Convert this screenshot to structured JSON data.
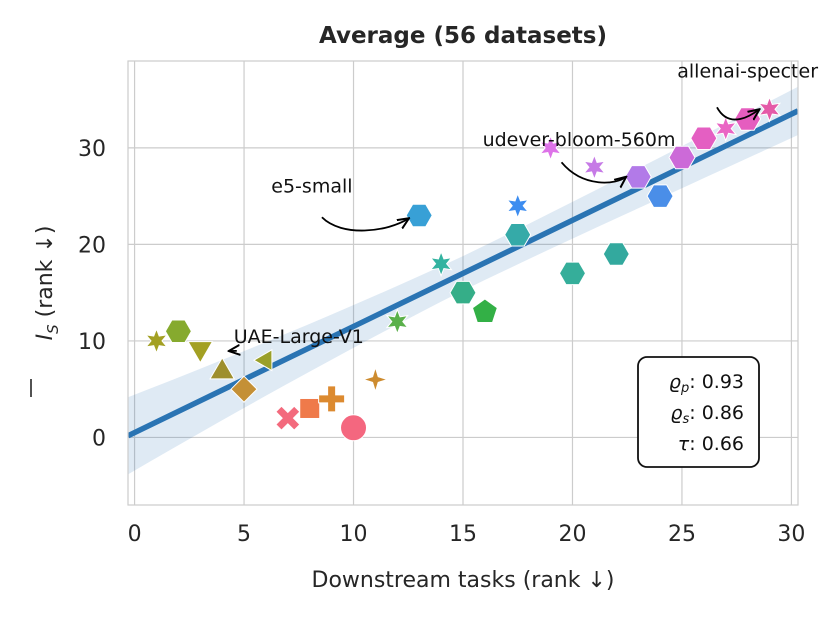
{
  "chart_data": {
    "type": "scatter",
    "title": "Average (56 datasets)",
    "xlabel": "Downstream tasks (rank ↓)",
    "ylabel_symbol": "I",
    "ylabel_subscript": "S",
    "ylabel_suffix": " (rank ↓)",
    "xlim": [
      -0.3,
      30.3
    ],
    "ylim": [
      -7,
      39
    ],
    "xticks": [
      0,
      5,
      10,
      15,
      20,
      25,
      30
    ],
    "yticks": [
      0,
      10,
      20,
      30
    ],
    "grid": true,
    "points": [
      {
        "x": 1,
        "y": 10,
        "marker": "star6",
        "color": "#a3a023"
      },
      {
        "x": 2,
        "y": 11,
        "marker": "hexagon",
        "color": "#86aa2e"
      },
      {
        "x": 3,
        "y": 9,
        "marker": "tri_down",
        "color": "#a3a023"
      },
      {
        "x": 4,
        "y": 7,
        "marker": "tri_up",
        "color": "#9e8f2d"
      },
      {
        "x": 5,
        "y": 5,
        "marker": "diamond",
        "color": "#c49036"
      },
      {
        "x": 6,
        "y": 8,
        "marker": "tri_left",
        "color": "#9aa02a"
      },
      {
        "x": 7,
        "y": 2,
        "marker": "x",
        "color": "#f36a7d"
      },
      {
        "x": 8,
        "y": 3,
        "marker": "square",
        "color": "#ef7a4a"
      },
      {
        "x": 9,
        "y": 4,
        "marker": "plus",
        "color": "#dc8a30"
      },
      {
        "x": 10,
        "y": 1,
        "marker": "circle",
        "color": "#f4677f"
      },
      {
        "x": 11,
        "y": 6,
        "marker": "star4",
        "color": "#cd8b2f"
      },
      {
        "x": 12,
        "y": 12,
        "marker": "star6",
        "color": "#5ab04a"
      },
      {
        "x": 13,
        "y": 23,
        "marker": "hexagon",
        "color": "#38a0d6"
      },
      {
        "x": 14,
        "y": 18,
        "marker": "star6",
        "color": "#33b3a0"
      },
      {
        "x": 15,
        "y": 15,
        "marker": "hexagon",
        "color": "#35ae88"
      },
      {
        "x": 16,
        "y": 13,
        "marker": "pentagon",
        "color": "#33b046"
      },
      {
        "x": 17.5,
        "y": 21,
        "marker": "hexagon",
        "color": "#35aaa8"
      },
      {
        "x": 17.5,
        "y": 24,
        "marker": "star6",
        "color": "#3d8df0"
      },
      {
        "x": 19,
        "y": 30,
        "marker": "star6",
        "color": "#dd73e8"
      },
      {
        "x": 20,
        "y": 17,
        "marker": "hexagon",
        "color": "#35ae9a"
      },
      {
        "x": 21,
        "y": 28,
        "marker": "star6",
        "color": "#c67ae6"
      },
      {
        "x": 22,
        "y": 19,
        "marker": "hexagon",
        "color": "#33a99e"
      },
      {
        "x": 23,
        "y": 27,
        "marker": "hexagon",
        "color": "#b27ae8"
      },
      {
        "x": 24,
        "y": 25,
        "marker": "hexagon",
        "color": "#4a8ee8"
      },
      {
        "x": 25,
        "y": 29,
        "marker": "hexagon",
        "color": "#cc6ad8"
      },
      {
        "x": 26,
        "y": 31,
        "marker": "hexagon",
        "color": "#e45fc2"
      },
      {
        "x": 27,
        "y": 32,
        "marker": "star6",
        "color": "#ea64c4"
      },
      {
        "x": 28,
        "y": 33,
        "marker": "hexagon",
        "color": "#e55dbf"
      },
      {
        "x": 29,
        "y": 34,
        "marker": "star6",
        "color": "#e45aa8"
      }
    ],
    "regression": {
      "intercept": 0.5,
      "slope": 1.1,
      "band_left": 4.0,
      "band_right": 2.5,
      "color": "#2a74b3"
    },
    "annotations": [
      {
        "text": "allenai-specter",
        "label_x": 28,
        "label_y": 37.3,
        "target_x": 29,
        "target_y": 34
      },
      {
        "text": "udever-bloom-560m",
        "label_x": 20.3,
        "label_y": 30.2,
        "target_x": 23,
        "target_y": 27
      },
      {
        "text": "e5-small",
        "label_x": 8.1,
        "label_y": 25.4,
        "target_x": 12.9,
        "target_y": 22.5
      },
      {
        "text": "UAE-Large-V1",
        "label_x": 7.5,
        "label_y": 9.8,
        "target_x": 4.3,
        "target_y": 7.5
      }
    ],
    "stats": {
      "rho_p": "0.93",
      "rho_s": "0.86",
      "tau": "0.66"
    }
  }
}
